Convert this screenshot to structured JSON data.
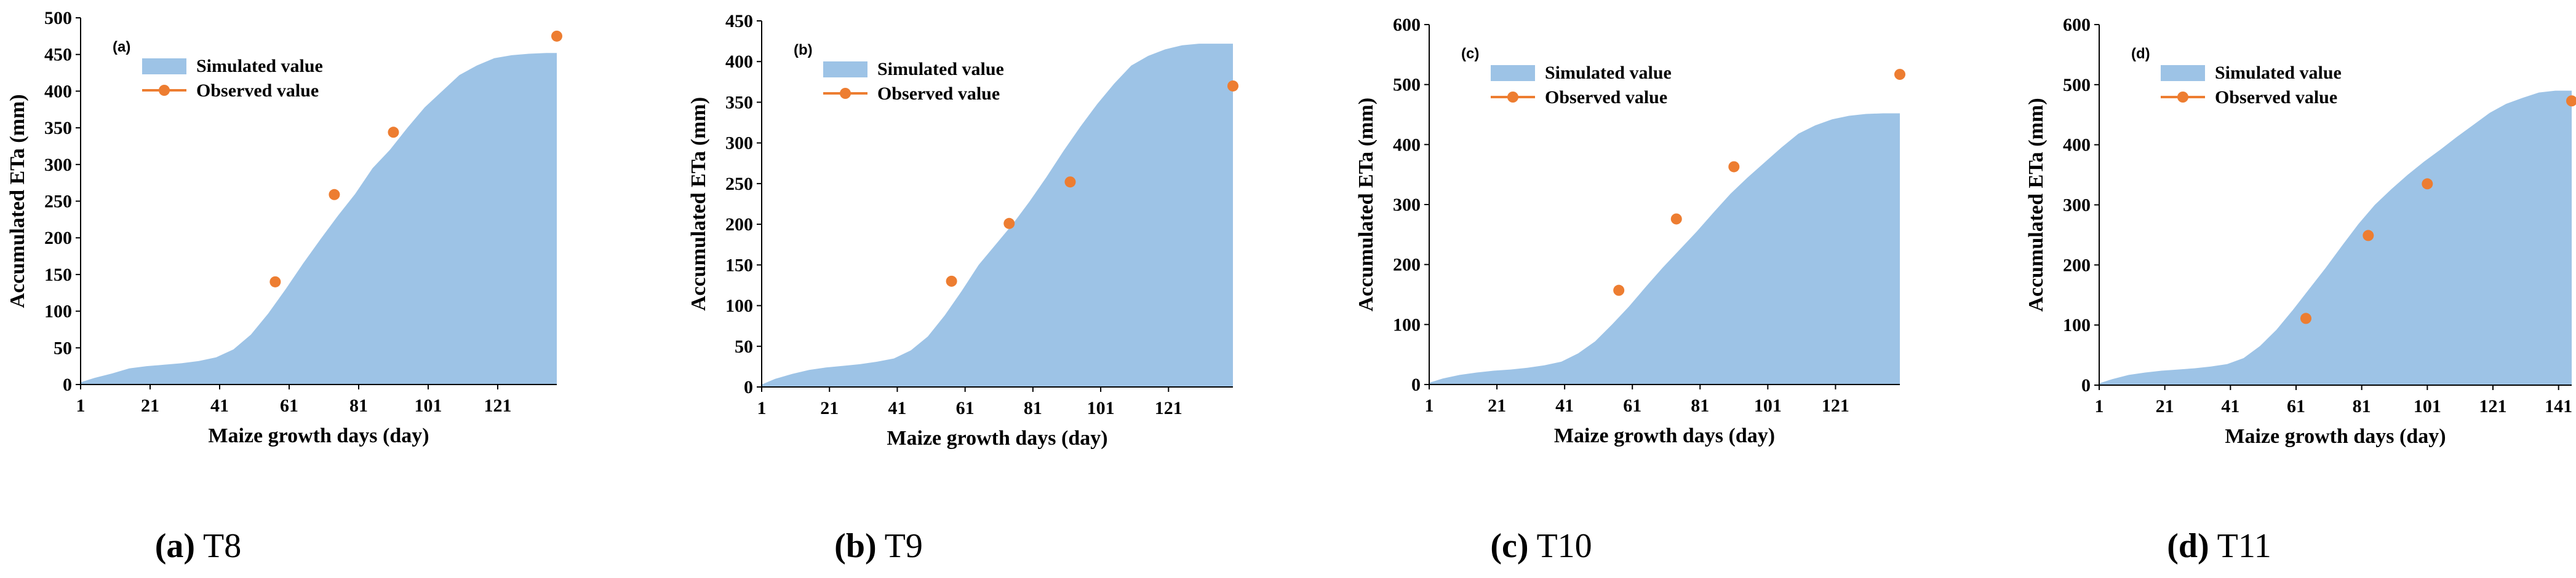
{
  "colors": {
    "area": "#9dc3e6",
    "marker": "#ed7d31",
    "axis": "#000000"
  },
  "chart_data": [
    {
      "type": "area",
      "panel_label": "(a)",
      "caption_label": "(a)",
      "caption_text": "T8",
      "xlabel": "Maize growth days (day)",
      "ylabel": "Accumulated ETa (mm)",
      "xlim": [
        1,
        138
      ],
      "ylim": [
        0,
        500
      ],
      "xticks": [
        1,
        21,
        41,
        61,
        81,
        101,
        121
      ],
      "yticks": [
        0,
        50,
        100,
        150,
        200,
        250,
        300,
        350,
        400,
        450,
        500
      ],
      "legend": [
        "Simulated value",
        "Observed value"
      ],
      "series": [
        {
          "name": "Simulated value",
          "kind": "area",
          "x": [
            1,
            5,
            10,
            15,
            20,
            25,
            30,
            35,
            40,
            45,
            50,
            55,
            60,
            65,
            70,
            75,
            80,
            85,
            90,
            95,
            100,
            105,
            110,
            115,
            120,
            125,
            130,
            135,
            138
          ],
          "y": [
            3,
            9,
            15,
            22,
            25,
            27,
            29,
            32,
            37,
            48,
            68,
            97,
            130,
            165,
            198,
            230,
            260,
            295,
            320,
            350,
            378,
            400,
            422,
            435,
            445,
            449,
            451,
            452,
            452
          ]
        },
        {
          "name": "Observed value",
          "kind": "points",
          "x": [
            57,
            74,
            91,
            138
          ],
          "y": [
            140,
            259,
            344,
            475
          ]
        }
      ]
    },
    {
      "type": "area",
      "panel_label": "(b)",
      "caption_label": "(b)",
      "caption_text": "T9",
      "xlabel": "Maize growth days (day)",
      "ylabel": "Accumulated ETa (mm)",
      "xlim": [
        1,
        140
      ],
      "ylim": [
        0,
        450
      ],
      "xticks": [
        1,
        21,
        41,
        61,
        81,
        101,
        121
      ],
      "yticks": [
        0,
        50,
        100,
        150,
        200,
        250,
        300,
        350,
        400,
        450
      ],
      "legend": [
        "Simulated value",
        "Observed value"
      ],
      "series": [
        {
          "name": "Simulated value",
          "kind": "area",
          "x": [
            1,
            5,
            10,
            15,
            20,
            25,
            30,
            35,
            40,
            45,
            50,
            55,
            60,
            65,
            70,
            75,
            80,
            85,
            90,
            95,
            100,
            105,
            110,
            115,
            120,
            125,
            130,
            135,
            140
          ],
          "y": [
            3,
            10,
            16,
            21,
            24,
            26,
            28,
            31,
            35,
            45,
            62,
            88,
            118,
            150,
            175,
            200,
            228,
            258,
            290,
            320,
            348,
            373,
            395,
            407,
            415,
            420,
            422,
            422,
            422
          ]
        },
        {
          "name": "Observed value",
          "kind": "points",
          "x": [
            57,
            74,
            92,
            140
          ],
          "y": [
            130,
            201,
            252,
            370
          ]
        }
      ]
    },
    {
      "type": "area",
      "panel_label": "(c)",
      "caption_label": "(c)",
      "caption_text": "T10",
      "xlabel": "Maize growth days (day)",
      "ylabel": "Accumulated ETa (mm)",
      "xlim": [
        1,
        140
      ],
      "ylim": [
        0,
        600
      ],
      "xticks": [
        1,
        21,
        41,
        61,
        81,
        101,
        121
      ],
      "yticks": [
        0,
        100,
        200,
        300,
        400,
        500,
        600
      ],
      "legend": [
        "Simulated value",
        "Observed value"
      ],
      "series": [
        {
          "name": "Simulated value",
          "kind": "area",
          "x": [
            1,
            5,
            10,
            15,
            20,
            25,
            30,
            35,
            40,
            45,
            50,
            55,
            60,
            65,
            70,
            75,
            80,
            85,
            90,
            95,
            100,
            105,
            110,
            115,
            120,
            125,
            130,
            135,
            140
          ],
          "y": [
            3,
            10,
            16,
            20,
            23,
            25,
            28,
            32,
            38,
            52,
            72,
            100,
            130,
            163,
            195,
            225,
            255,
            287,
            318,
            345,
            370,
            395,
            418,
            432,
            442,
            448,
            451,
            452,
            452
          ]
        },
        {
          "name": "Observed value",
          "kind": "points",
          "x": [
            57,
            74,
            91,
            140
          ],
          "y": [
            157,
            276,
            363,
            517
          ]
        }
      ]
    },
    {
      "type": "area",
      "panel_label": "(d)",
      "caption_label": "(d)",
      "caption_text": "T11",
      "xlabel": "Maize growth days (day)",
      "ylabel": "Accumulated ETa (mm)",
      "xlim": [
        1,
        145
      ],
      "ylim": [
        0,
        600
      ],
      "xticks": [
        1,
        21,
        41,
        61,
        81,
        101,
        121,
        141
      ],
      "yticks": [
        0,
        100,
        200,
        300,
        400,
        500,
        600
      ],
      "legend": [
        "Simulated value",
        "Observed value"
      ],
      "series": [
        {
          "name": "Simulated value",
          "kind": "area",
          "x": [
            1,
            5,
            10,
            15,
            20,
            25,
            30,
            35,
            40,
            45,
            50,
            55,
            60,
            65,
            70,
            75,
            80,
            85,
            90,
            95,
            100,
            105,
            110,
            115,
            120,
            125,
            130,
            135,
            140,
            145
          ],
          "y": [
            3,
            10,
            17,
            21,
            24,
            26,
            28,
            31,
            35,
            45,
            65,
            92,
            125,
            160,
            195,
            232,
            268,
            300,
            326,
            350,
            372,
            392,
            413,
            433,
            453,
            468,
            478,
            487,
            490,
            490
          ]
        },
        {
          "name": "Observed value",
          "kind": "points",
          "x": [
            64,
            83,
            101,
            145
          ],
          "y": [
            111,
            249,
            335,
            473
          ]
        }
      ]
    }
  ]
}
